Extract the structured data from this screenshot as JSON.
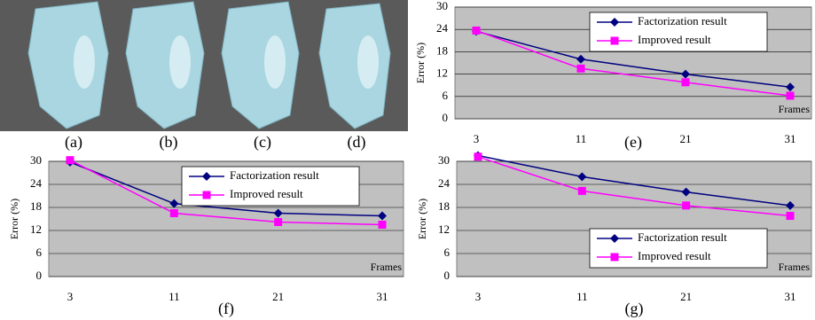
{
  "figure": {
    "panels": [
      "(a)",
      "(b)",
      "(c)",
      "(d)"
    ]
  },
  "chart_data": [
    {
      "type": "line",
      "caption": "(e)",
      "y_label": "Error (%)",
      "annotation": "Frames",
      "categories": [
        "3",
        "11",
        "21",
        "31"
      ],
      "series": [
        {
          "name": "Factorization result",
          "color": "#000080",
          "marker": "diamond",
          "values": [
            23.5,
            16,
            12,
            8.5
          ]
        },
        {
          "name": "Improved result",
          "color": "#ff00ff",
          "marker": "square",
          "values": [
            23.7,
            13.5,
            9.8,
            6.2
          ]
        }
      ],
      "ylim": [
        0,
        30
      ],
      "yticks": [
        0,
        6,
        12,
        18,
        24,
        30
      ],
      "grid": true,
      "legend": "upper right"
    },
    {
      "type": "line",
      "caption": "(f)",
      "y_label": "Error (%)",
      "annotation": "Frames",
      "categories": [
        "3",
        "11",
        "21",
        "31"
      ],
      "series": [
        {
          "name": "Factorization result",
          "color": "#000080",
          "marker": "diamond",
          "values": [
            29.8,
            19,
            16.5,
            15.8
          ]
        },
        {
          "name": "Improved result",
          "color": "#ff00ff",
          "marker": "square",
          "values": [
            30.3,
            16.5,
            14.2,
            13.5
          ]
        }
      ],
      "ylim": [
        0,
        30
      ],
      "yticks": [
        0,
        6,
        12,
        18,
        24,
        30
      ],
      "grid": true,
      "legend": "upper right"
    },
    {
      "type": "line",
      "caption": "(g)",
      "y_label": "Error (%)",
      "annotation": "Frames",
      "categories": [
        "3",
        "11",
        "21",
        "31"
      ],
      "series": [
        {
          "name": "Factorization result",
          "color": "#000080",
          "marker": "diamond",
          "values": [
            31.5,
            26,
            22,
            18.5
          ]
        },
        {
          "name": "Improved result",
          "color": "#ff00ff",
          "marker": "square",
          "values": [
            31.2,
            22.3,
            18.5,
            15.8
          ]
        }
      ],
      "ylim": [
        0,
        30
      ],
      "yticks": [
        0,
        6,
        12,
        18,
        24,
        30
      ],
      "grid": true,
      "legend": "lower right"
    }
  ]
}
